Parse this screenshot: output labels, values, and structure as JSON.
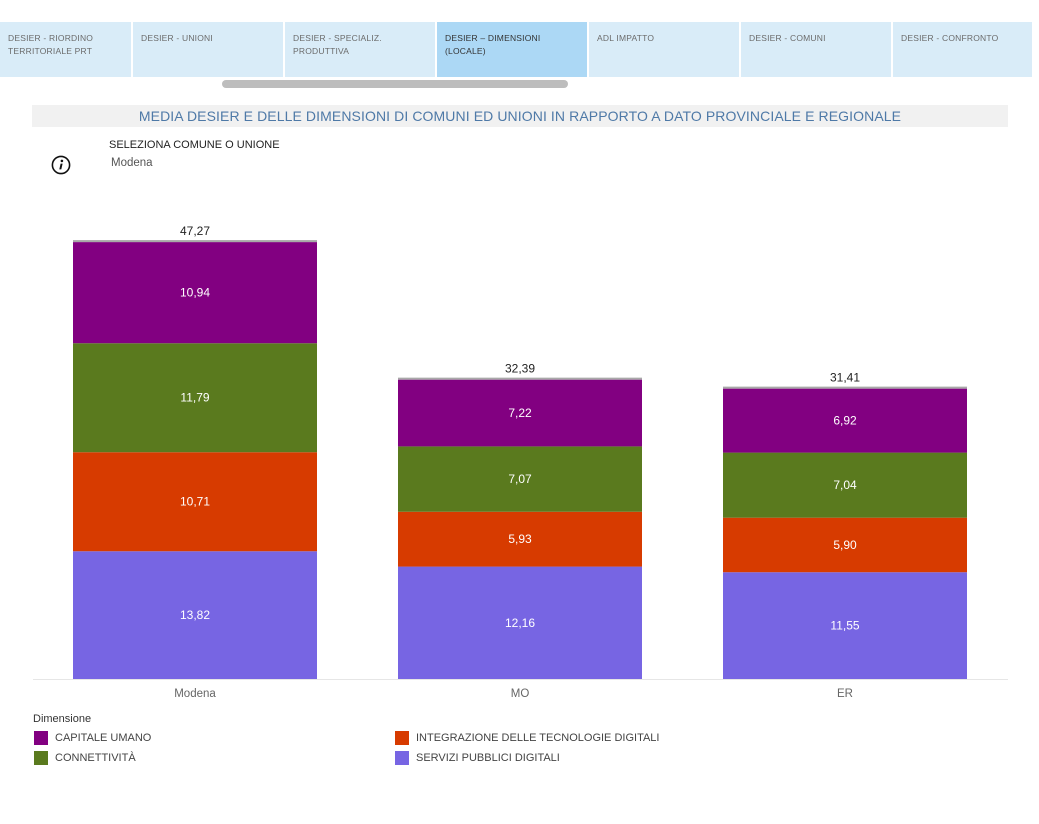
{
  "tabs": [
    {
      "line1": "DESIER - RIORDINO",
      "line2": "TERRITORIALE PRT",
      "active": false
    },
    {
      "line1": "DESIER - UNIONI",
      "line2": "",
      "active": false
    },
    {
      "line1": "DESIER - SPECIALIZ.",
      "line2": "PRODUTTIVA",
      "active": false
    },
    {
      "line1": "DESIER – DIMENSIONI",
      "line2": "(LOCALE)",
      "active": true
    },
    {
      "line1": "ADL IMPATTO",
      "line2": "",
      "active": false
    },
    {
      "line1": "DESIER - COMUNI",
      "line2": "",
      "active": false
    },
    {
      "line1": "DESIER - CONFRONTO",
      "line2": "",
      "active": false
    }
  ],
  "selector": {
    "label": "SELEZIONA COMUNE O UNIONE",
    "value": "Modena",
    "info_icon": "info-circle-icon"
  },
  "chart_data": {
    "type": "bar",
    "stacked": true,
    "title": "MEDIA DESIER E DELLE DIMENSIONI DI COMUNI ED UNIONI IN RAPPORTO A DATO PROVINCIALE E REGIONALE",
    "categories": [
      "Modena",
      "MO",
      "ER"
    ],
    "series": [
      {
        "name": "SERVIZI PUBBLICI DIGITALI",
        "label": "13,82",
        "color": "#7765e3",
        "values": [
          13.82,
          12.16,
          11.55
        ],
        "labels": [
          "13,82",
          "12,16",
          "11,55"
        ]
      },
      {
        "name": "INTEGRAZIONE DELLE TECNOLOGIE DIGITALI",
        "color": "#d73b00",
        "values": [
          10.71,
          5.93,
          5.9
        ],
        "labels": [
          "10,71",
          "5,93",
          "5,90"
        ]
      },
      {
        "name": "CONNETTIVITÀ",
        "color": "#5a7a1e",
        "values": [
          11.79,
          7.07,
          7.04
        ],
        "labels": [
          "11,79",
          "7,07",
          "7,04"
        ]
      },
      {
        "name": "CAPITALE UMANO",
        "color": "#820081",
        "values": [
          10.94,
          7.22,
          6.92
        ],
        "labels": [
          "10,94",
          "7,22",
          "6,92"
        ]
      }
    ],
    "totals": [
      47.27,
      32.39,
      31.41
    ],
    "total_labels": [
      "47,27",
      "32,39",
      "31,41"
    ],
    "ylim": [
      0,
      47.27
    ],
    "grid": false,
    "legend_title": "Dimensione",
    "legend": [
      {
        "name": "CAPITALE UMANO",
        "color": "#820081"
      },
      {
        "name": "INTEGRAZIONE DELLE TECNOLOGIE DIGITALI",
        "color": "#d73b00"
      },
      {
        "name": "CONNETTIVITÀ",
        "color": "#5a7a1e"
      },
      {
        "name": "SERVIZI PUBBLICI DIGITALI",
        "color": "#7765e3"
      }
    ]
  }
}
